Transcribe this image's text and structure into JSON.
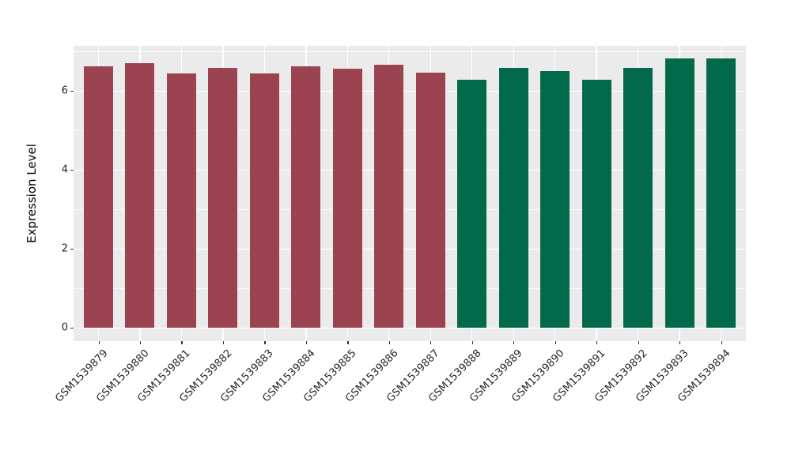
{
  "figure": {
    "background": "#FFFFFF",
    "panel_background": "#EBEBEB",
    "grid_major_color": "#FFFFFF",
    "grid_minor_color": "#FFFFFF",
    "tick_mark_color": "#333333",
    "axis_text_color": "#262626"
  },
  "chart_data": {
    "type": "bar",
    "title": "",
    "xlabel": "",
    "ylabel": "Expression Level",
    "legend_position": "none",
    "grid": "on",
    "ylim": [
      0,
      7.1
    ],
    "yticks": [
      0,
      2,
      4,
      6
    ],
    "yticks_minor": [
      1,
      3,
      5,
      7
    ],
    "categories": [
      "GSM1539879",
      "GSM1539880",
      "GSM1539881",
      "GSM1539882",
      "GSM1539883",
      "GSM1539884",
      "GSM1539885",
      "GSM1539886",
      "GSM1539887",
      "GSM1539888",
      "GSM1539889",
      "GSM1539890",
      "GSM1539891",
      "GSM1539892",
      "GSM1539893",
      "GSM1539894"
    ],
    "values": [
      6.61,
      6.69,
      6.44,
      6.58,
      6.44,
      6.62,
      6.55,
      6.66,
      6.45,
      6.28,
      6.57,
      6.49,
      6.28,
      6.57,
      6.81,
      6.82
    ],
    "bar_colors": [
      "#9B4351",
      "#9B4351",
      "#9B4351",
      "#9B4351",
      "#9B4351",
      "#9B4351",
      "#9B4351",
      "#9B4351",
      "#9B4351",
      "#026A4B",
      "#026A4B",
      "#026A4B",
      "#026A4B",
      "#026A4B",
      "#026A4B",
      "#026A4B"
    ],
    "palette": {
      "maroon": "#9B4351",
      "green": "#026A4B"
    }
  }
}
